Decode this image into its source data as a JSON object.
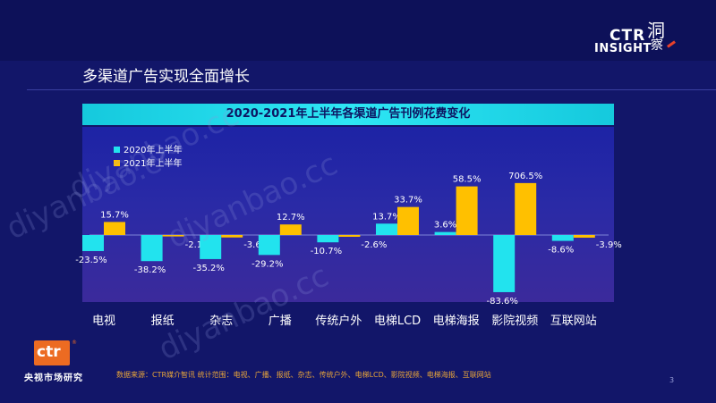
{
  "slide_title": "多渠道广告实现全面增长",
  "logo": {
    "ctr": "CTR",
    "insight": "INSIGHT",
    "cjk_top": "洞",
    "cjk_bottom": "察"
  },
  "chart_data": {
    "type": "bar",
    "title": "2020-2021年上半年各渠道广告刊例花费变化",
    "categories": [
      "电视",
      "报纸",
      "杂志",
      "广播",
      "传统户外",
      "电梯LCD",
      "电梯海报",
      "影院视频",
      "互联网站"
    ],
    "series": [
      {
        "name": "2020年上半年",
        "color": "#22e3ee",
        "values": [
          -23.5,
          -38.2,
          -35.2,
          -29.2,
          -10.7,
          13.7,
          3.6,
          -83.6,
          -8.6
        ],
        "labels": [
          "-23.5%",
          "-38.2%",
          "-35.2%",
          "-29.2%",
          "-10.7%",
          "13.7%",
          "3.6%",
          "-83.6%",
          "-8.6%"
        ]
      },
      {
        "name": "2021年上半年",
        "color": "#ffc000",
        "values": [
          15.7,
          -2.1,
          -3.6,
          12.7,
          -2.6,
          33.7,
          58.5,
          706.5,
          -3.9
        ],
        "labels": [
          "15.7%",
          "-2.1%",
          "-3.6%",
          "12.7%",
          "-2.6%",
          "33.7%",
          "58.5%",
          "706.5%",
          "-3.9%"
        ]
      }
    ],
    "legend_position": "top-left",
    "grid": false
  },
  "footer": {
    "logo_text": "ctr",
    "logo_caption": "央视市场研究",
    "source": "数据来源：CTR媒介智讯 统计范围：电视、广播、报纸、杂志、传统户外、电梯LCD、影院视频、电梯海报、互联网站",
    "page_number": "3"
  },
  "watermarks": [
    "diyanbao.cc",
    "diyanbao.cc",
    "diyanbao.cc",
    "diyanbao.cc"
  ]
}
